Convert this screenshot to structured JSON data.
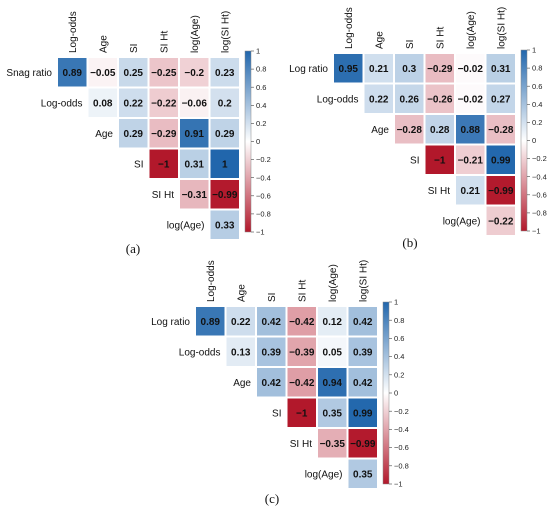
{
  "chart_data": [
    {
      "type": "heatmap",
      "panel_label": "(a)",
      "columns": [
        "Log-odds",
        "Age",
        "SI",
        "SI Ht",
        "log(Age)",
        "log(SI Ht)"
      ],
      "rows": [
        "Snag ratio",
        "Log-odds",
        "Age",
        "SI",
        "SI Ht",
        "log(Age)"
      ],
      "values": [
        [
          0.89,
          -0.05,
          0.25,
          -0.25,
          -0.2,
          0.23
        ],
        [
          null,
          0.08,
          0.22,
          -0.22,
          -0.06,
          0.2
        ],
        [
          null,
          null,
          0.29,
          -0.29,
          0.91,
          0.29
        ],
        [
          null,
          null,
          null,
          -1,
          0.31,
          1
        ],
        [
          null,
          null,
          null,
          null,
          -0.31,
          -0.99
        ],
        [
          null,
          null,
          null,
          null,
          null,
          0.33
        ]
      ],
      "value_labels": [
        [
          "0.89",
          "−0.05",
          "0.25",
          "−0.25",
          "−0.2",
          "0.23"
        ],
        [
          null,
          "0.08",
          "0.22",
          "−0.22",
          "−0.06",
          "0.2"
        ],
        [
          null,
          null,
          "0.29",
          "−0.29",
          "0.91",
          "0.29"
        ],
        [
          null,
          null,
          null,
          "−1",
          "0.31",
          "1"
        ],
        [
          null,
          null,
          null,
          null,
          "−0.31",
          "−0.99"
        ],
        [
          null,
          null,
          null,
          null,
          null,
          "0.33"
        ]
      ],
      "colorbar": {
        "range": [
          -1,
          1
        ],
        "ticks": [
          1,
          0.8,
          0.6,
          0.4,
          0.2,
          0,
          -0.2,
          -0.4,
          -0.6,
          -0.8,
          -1
        ],
        "tick_labels": [
          "1",
          "0.8",
          "0.6",
          "0.4",
          "0.2",
          "0",
          "−0.2",
          "−0.4",
          "−0.6",
          "−0.8",
          "−1"
        ],
        "colors": {
          "negative": "#B2182B",
          "zero": "#FFFFFF",
          "positive": "#2166AC"
        }
      }
    },
    {
      "type": "heatmap",
      "panel_label": "(b)",
      "columns": [
        "Log-odds",
        "Age",
        "SI",
        "SI Ht",
        "log(Age)",
        "log(SI Ht)"
      ],
      "rows": [
        "Log ratio",
        "Log-odds",
        "Age",
        "SI",
        "SI Ht",
        "log(Age)"
      ],
      "values": [
        [
          0.95,
          0.21,
          0.3,
          -0.29,
          -0.02,
          0.31
        ],
        [
          null,
          0.22,
          0.26,
          -0.26,
          -0.02,
          0.27
        ],
        [
          null,
          null,
          -0.28,
          0.28,
          0.88,
          -0.28
        ],
        [
          null,
          null,
          null,
          -1,
          -0.21,
          0.99
        ],
        [
          null,
          null,
          null,
          null,
          0.21,
          -0.99
        ],
        [
          null,
          null,
          null,
          null,
          null,
          -0.22
        ]
      ],
      "value_labels": [
        [
          "0.95",
          "0.21",
          "0.3",
          "−0.29",
          "−0.02",
          "0.31"
        ],
        [
          null,
          "0.22",
          "0.26",
          "−0.26",
          "−0.02",
          "0.27"
        ],
        [
          null,
          null,
          "−0.28",
          "0.28",
          "0.88",
          "−0.28"
        ],
        [
          null,
          null,
          null,
          "−1",
          "−0.21",
          "0.99"
        ],
        [
          null,
          null,
          null,
          null,
          "0.21",
          "−0.99"
        ],
        [
          null,
          null,
          null,
          null,
          null,
          "−0.22"
        ]
      ],
      "colorbar": {
        "range": [
          -1,
          1
        ],
        "ticks": [
          1,
          0.8,
          0.6,
          0.4,
          0.2,
          0,
          -0.2,
          -0.4,
          -0.6,
          -0.8,
          -1
        ],
        "tick_labels": [
          "1",
          "0.8",
          "0.6",
          "0.4",
          "0.2",
          "0",
          "−0.2",
          "−0.4",
          "−0.6",
          "−0.8",
          "−1"
        ],
        "colors": {
          "negative": "#B2182B",
          "zero": "#FFFFFF",
          "positive": "#2166AC"
        }
      }
    },
    {
      "type": "heatmap",
      "panel_label": "(c)",
      "columns": [
        "Log-odds",
        "Age",
        "SI",
        "SI Ht",
        "log(Age)",
        "log(SI Ht)"
      ],
      "rows": [
        "Log ratio",
        "Log-odds",
        "Age",
        "SI",
        "SI Ht",
        "log(Age)"
      ],
      "values": [
        [
          0.89,
          0.22,
          0.42,
          -0.42,
          0.12,
          0.42
        ],
        [
          null,
          0.13,
          0.39,
          -0.39,
          0.05,
          0.39
        ],
        [
          null,
          null,
          0.42,
          -0.42,
          0.94,
          0.42
        ],
        [
          null,
          null,
          null,
          -1,
          0.35,
          0.99
        ],
        [
          null,
          null,
          null,
          null,
          -0.35,
          -0.99
        ],
        [
          null,
          null,
          null,
          null,
          null,
          0.35
        ]
      ],
      "value_labels": [
        [
          "0.89",
          "0.22",
          "0.42",
          "−0.42",
          "0.12",
          "0.42"
        ],
        [
          null,
          "0.13",
          "0.39",
          "−0.39",
          "0.05",
          "0.39"
        ],
        [
          null,
          null,
          "0.42",
          "−0.42",
          "0.94",
          "0.42"
        ],
        [
          null,
          null,
          null,
          "−1",
          "0.35",
          "0.99"
        ],
        [
          null,
          null,
          null,
          null,
          "−0.35",
          "−0.99"
        ],
        [
          null,
          null,
          null,
          null,
          null,
          "0.35"
        ]
      ],
      "colorbar": {
        "range": [
          -1,
          1
        ],
        "ticks": [
          1,
          0.8,
          0.6,
          0.4,
          0.2,
          0,
          -0.2,
          -0.4,
          -0.6,
          -0.8,
          -1
        ],
        "tick_labels": [
          "1",
          "0.8",
          "0.6",
          "0.4",
          "0.2",
          "0",
          "−0.2",
          "−0.4",
          "−0.6",
          "−0.8",
          "−1"
        ],
        "colors": {
          "negative": "#B2182B",
          "zero": "#FFFFFF",
          "positive": "#2166AC"
        }
      }
    }
  ]
}
